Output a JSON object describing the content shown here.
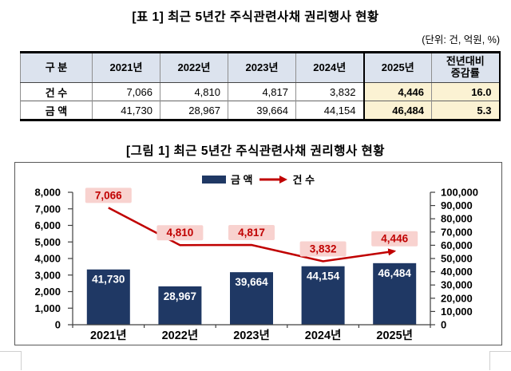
{
  "page": {
    "table_title": "[표 1] 최근 5년간 주식관련사채 권리행사 현황",
    "unit_note": "(단위: 건, 억원, %)"
  },
  "table": {
    "columns": [
      "구  분",
      "2021년",
      "2022년",
      "2023년",
      "2024년",
      "2025년",
      "전년대비\n증감률"
    ],
    "rows": [
      {
        "label": "건  수",
        "values": [
          "7,066",
          "4,810",
          "4,817",
          "3,832",
          "4,446",
          "16.0"
        ]
      },
      {
        "label": "금  액",
        "values": [
          "41,730",
          "28,967",
          "39,664",
          "44,154",
          "46,484",
          "5.3"
        ]
      }
    ],
    "highlighted_columns": [
      "2025년",
      "전년대비 증감률"
    ]
  },
  "chart_data": {
    "type": "combo-bar-line",
    "title": "[그림 1] 최근 5년간 주식관련사채 권리행사 현황",
    "categories": [
      "2021년",
      "2022년",
      "2023년",
      "2024년",
      "2025년"
    ],
    "series": [
      {
        "name": "금 액",
        "type": "bar",
        "axis": "right",
        "color": "#1f3864",
        "values": [
          41730,
          28967,
          39664,
          44154,
          46484
        ]
      },
      {
        "name": "건 수",
        "type": "line",
        "axis": "left",
        "color": "#c00000",
        "values": [
          7066,
          4810,
          4817,
          3832,
          4446
        ]
      }
    ],
    "left_axis": {
      "min": 0,
      "max": 8000,
      "step": 1000
    },
    "right_axis": {
      "min": 0,
      "max": 100000,
      "step": 10000
    },
    "legend_position": "top",
    "gridlines": false,
    "data_labels": true,
    "line_label_bg": "#f8d2cf"
  },
  "colors": {
    "table_header_bg": "#dce3ee",
    "highlight_bg": "#fbf2d3",
    "bar_navy": "#1f3864",
    "line_red": "#c00000",
    "chart_border": "#595959"
  }
}
